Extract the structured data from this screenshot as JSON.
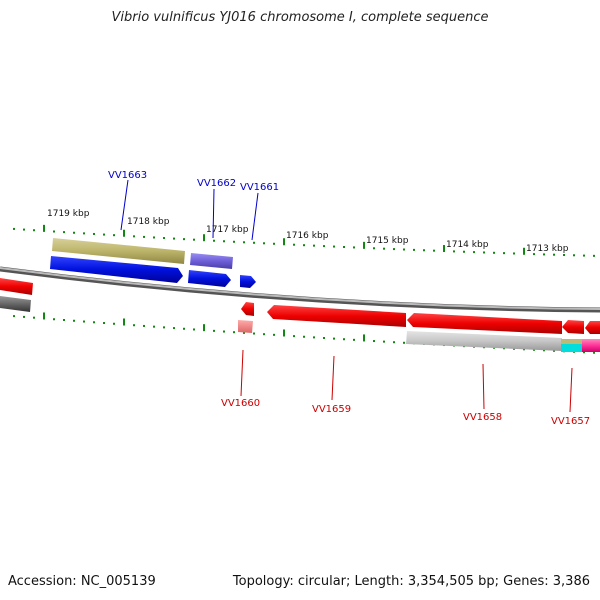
{
  "title": "Vibrio vulnificus YJ016 chromosome I, complete sequence",
  "footer": {
    "accession": "Accession: NC_005139",
    "summary": "Topology: circular; Length: 3,354,505 bp; Genes: 3,386"
  },
  "ruler_labels": [
    "1719 kbp",
    "1718 kbp",
    "1717 kbp",
    "1716 kbp",
    "1715 kbp",
    "1714 kbp",
    "1713 kbp"
  ],
  "forward_gene_labels": [
    "VV1663",
    "VV1662",
    "VV1661"
  ],
  "reverse_gene_labels": [
    "VV1660",
    "VV1659",
    "VV1658",
    "VV1657"
  ],
  "colors": {
    "forward_strand": "#0000dd",
    "reverse_strand": "#ee0000",
    "forward_label": "#0000cc",
    "reverse_label": "#cc0000",
    "tick": "#118811",
    "backbone": "#888888"
  }
}
